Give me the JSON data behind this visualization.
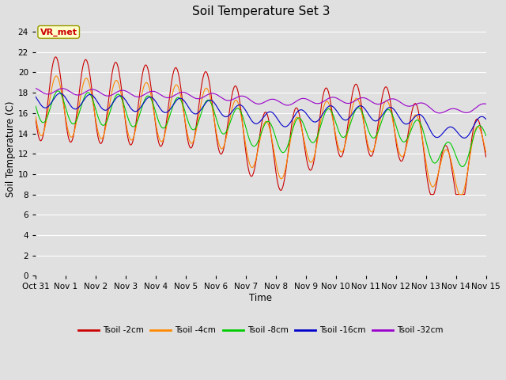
{
  "title": "Soil Temperature Set 3",
  "xlabel": "Time",
  "ylabel": "Soil Temperature (C)",
  "ylim": [
    0,
    25
  ],
  "yticks": [
    0,
    2,
    4,
    6,
    8,
    10,
    12,
    14,
    16,
    18,
    20,
    22,
    24
  ],
  "colors": {
    "Tsoil -2cm": "#cc0000",
    "Tsoil -4cm": "#ff8800",
    "Tsoil -8cm": "#00cc00",
    "Tsoil -16cm": "#0000cc",
    "Tsoil -32cm": "#9900cc"
  },
  "fig_bg": "#e0e0e0",
  "plot_bg": "#e0e0e0",
  "grid_color": "#ffffff",
  "annotation_text": "VR_met",
  "annotation_color": "#cc0000",
  "annotation_bg": "#ffffcc",
  "annotation_edge": "#999900",
  "date_labels": [
    "Oct 31",
    "Nov 1",
    "Nov 2",
    "Nov 3",
    "Nov 4",
    "Nov 5",
    "Nov 6",
    "Nov 7",
    "Nov 8",
    "Nov 9",
    "Nov 10",
    "Nov 11",
    "Nov 12",
    "Nov 13",
    "Nov 14",
    "Nov 15"
  ],
  "num_days": 15
}
